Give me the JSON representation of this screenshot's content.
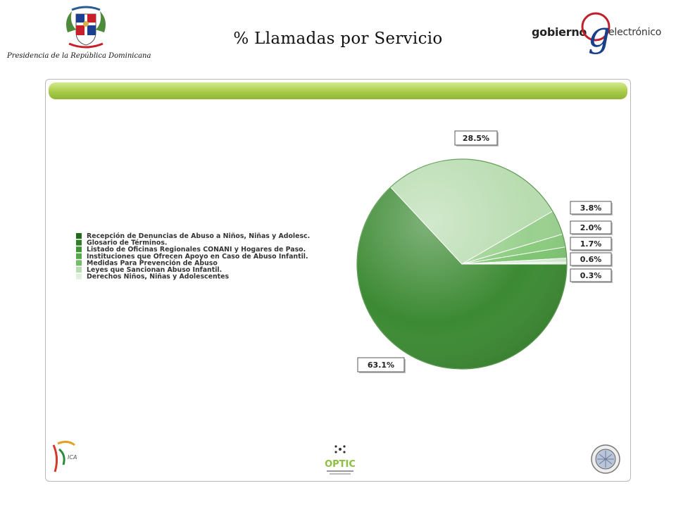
{
  "header": {
    "title": "% Llamadas por Servicio",
    "presidencia_text": "Presidencia de la República Dominicana",
    "gob_logo": {
      "word1": "gobierno",
      "letter": "g",
      "word2": "electrónico"
    }
  },
  "chart_data": {
    "type": "pie",
    "title": "",
    "legend_placement": "left",
    "categories": [
      "Recepción de Denuncias de Abuso a Niños, Niñas y Adolesc.",
      "Glosario de Términos.",
      "Listado de Oficinas Regionales CONANI y Hogares de Paso.",
      "Instituciones que Ofrecen Apoyo en Caso de Abuso Infantil.",
      "Medidas Para Prevención de Abuso",
      "Leyes que Sancionan Abuso Infantil.",
      "Derechos Niños, Niñas y Adolescentes"
    ],
    "values": [
      63.1,
      28.5,
      3.8,
      2.0,
      1.7,
      0.6,
      0.3
    ],
    "labels": [
      "63.1%",
      "28.5%",
      "3.8%",
      "2.0%",
      "1.7%",
      "0.6%",
      "0.3%"
    ],
    "colors": [
      "#3c8a33",
      "#b8dcb0",
      "#9ad08f",
      "#8acb7e",
      "#7ec472",
      "#d7ecd2",
      "#e8f5e5"
    ],
    "legend_colors": [
      "#1f6b1a",
      "#2e7f27",
      "#3f9436",
      "#55a84a",
      "#75bd68",
      "#b9deb1",
      "#dff1da"
    ]
  },
  "footer": {
    "ica_text": "ICA",
    "optic_text": "OPTIC",
    "icons": [
      "ica-logo-icon",
      "optic-logo-icon",
      "oea-seal-icon"
    ]
  }
}
